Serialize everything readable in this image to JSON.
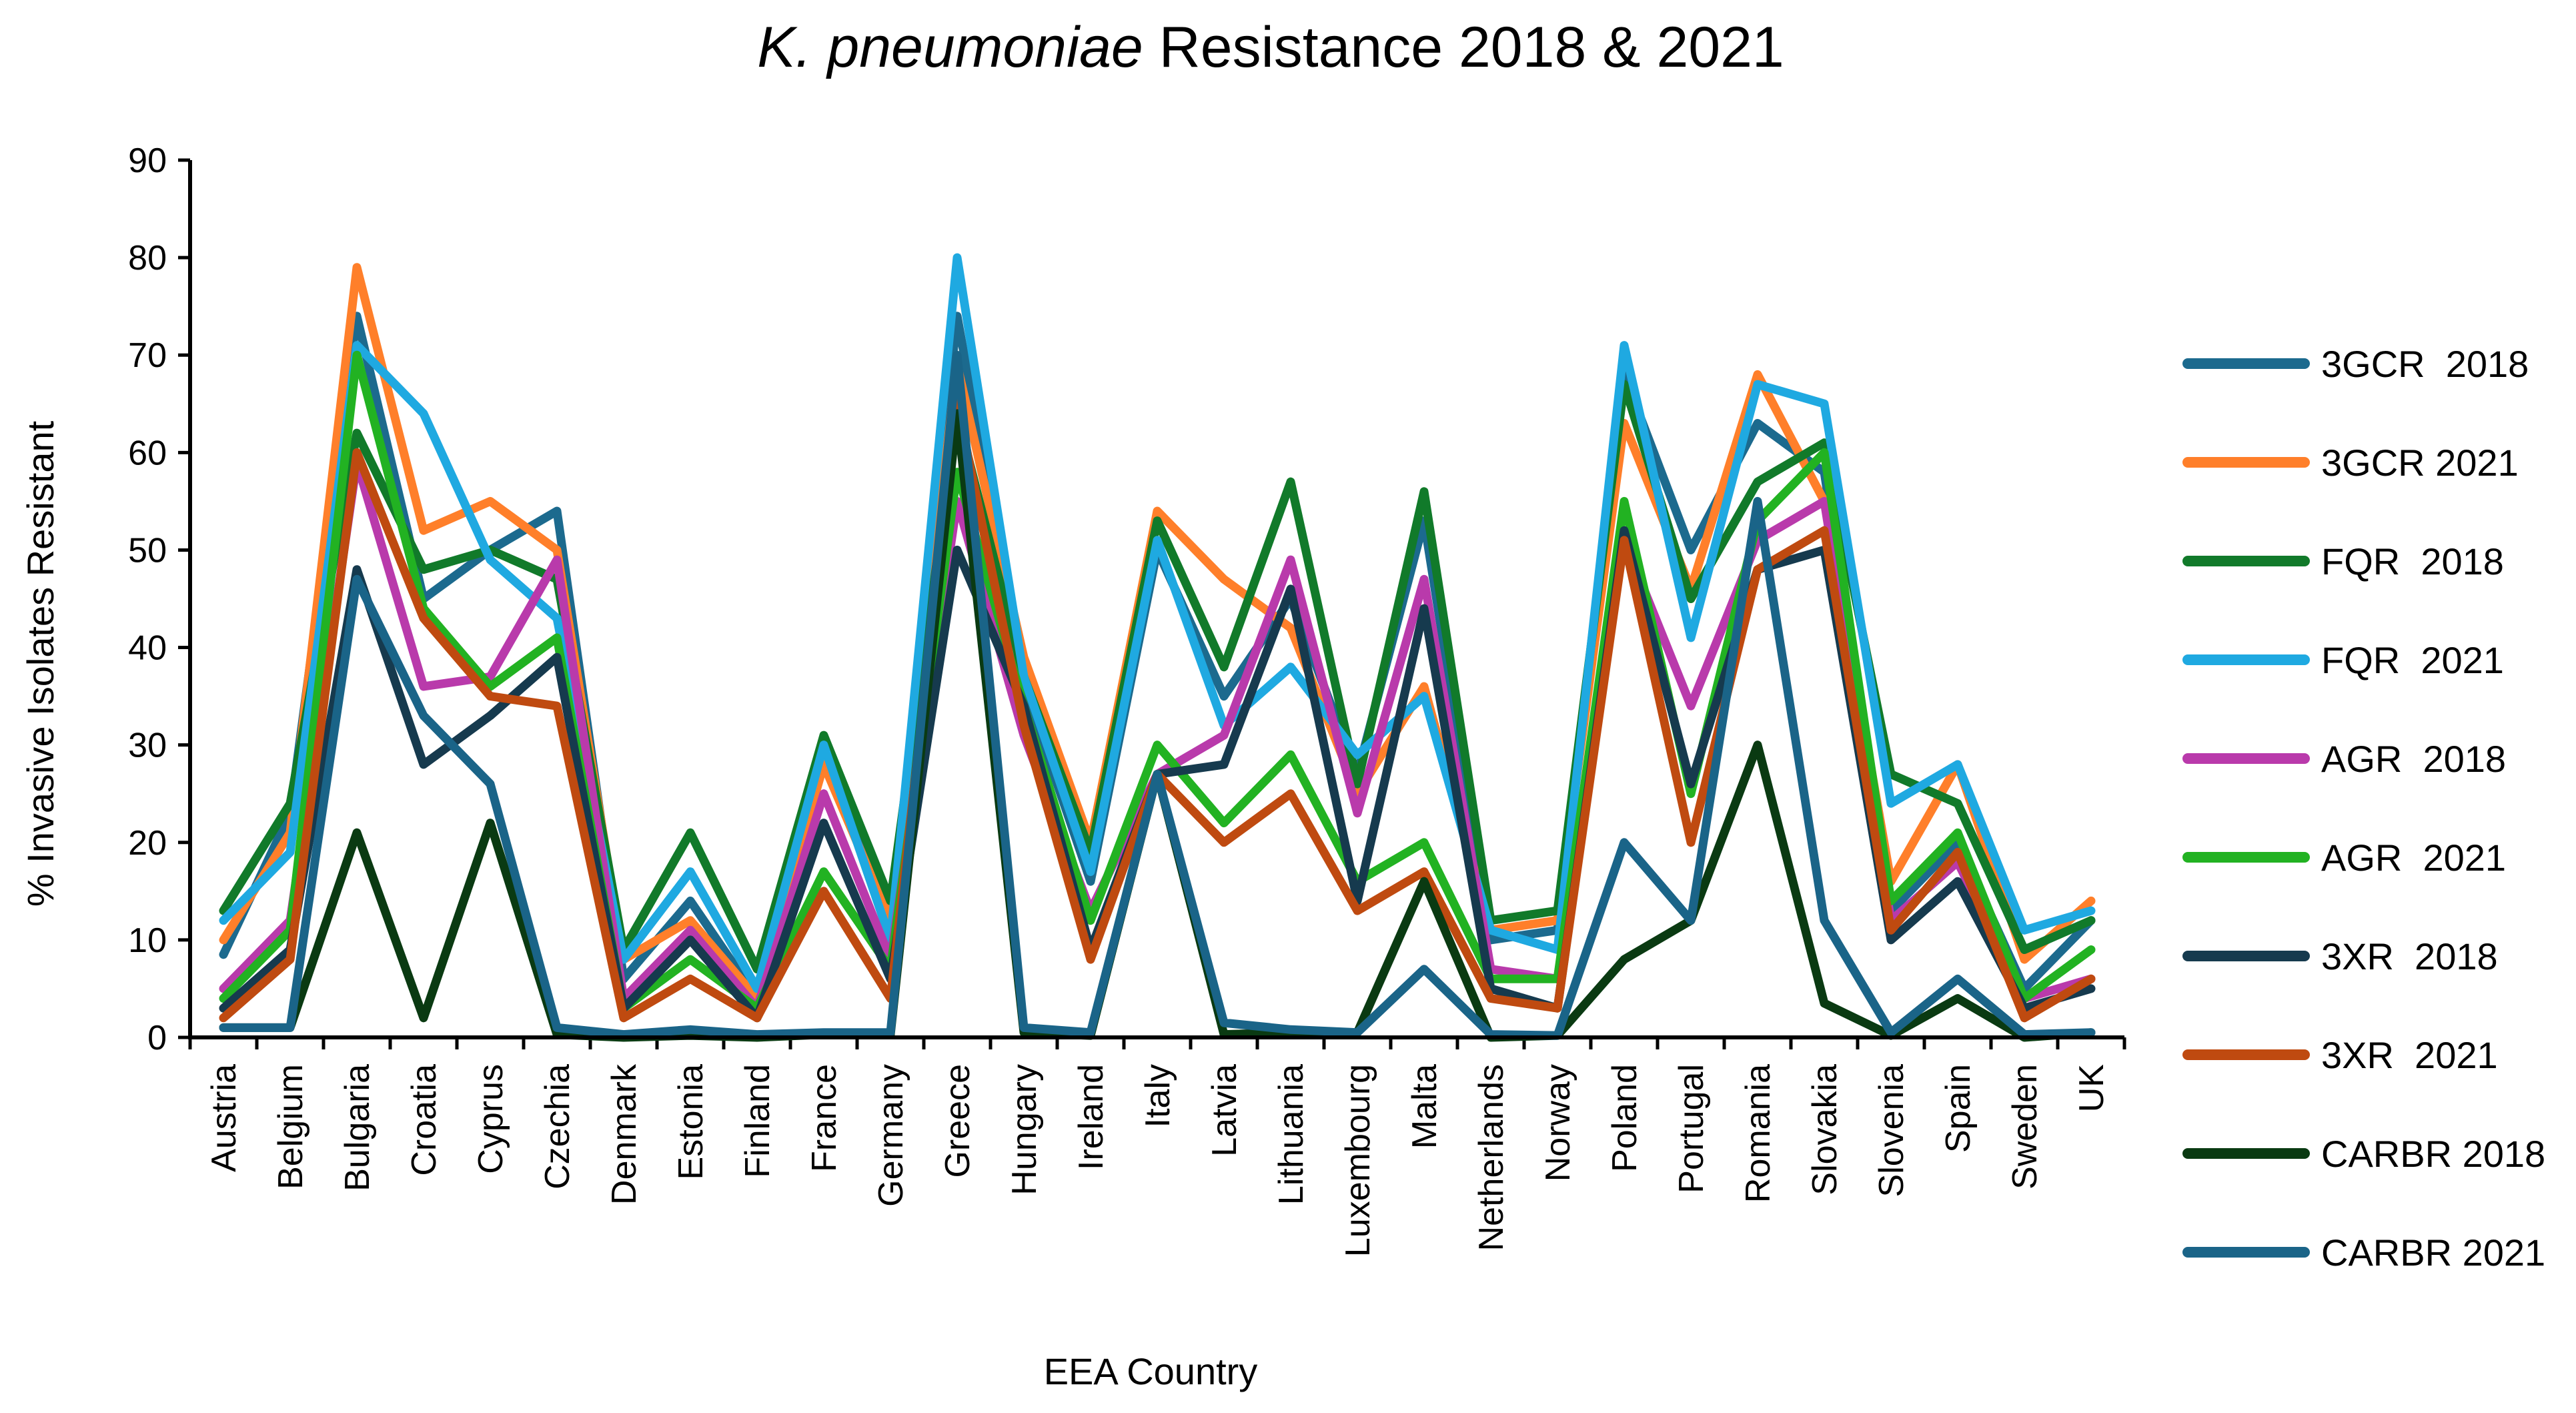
{
  "chart_data": {
    "type": "line",
    "title_italic": "K. pneumoniae",
    "title_rest": " Resistance 2018 & 2021",
    "xlabel": "EEA Country",
    "ylabel": "% Invasive Isolates Resistant",
    "ylim": [
      0,
      90
    ],
    "yticks": [
      0,
      10,
      20,
      30,
      40,
      50,
      60,
      70,
      80,
      90
    ],
    "grid": false,
    "legend_position": "right",
    "categories": [
      "Austria",
      "Belgium",
      "Bulgaria",
      "Croatia",
      "Cyprus",
      "Czechia",
      "Denmark",
      "Estonia",
      "Finland",
      "France",
      "Germany",
      "Greece",
      "Hungary",
      "Ireland",
      "Italy",
      "Latvia",
      "Lithuania",
      "Luxembourg",
      "Malta",
      "Netherlands",
      "Norway",
      "Poland",
      "Portugal",
      "Romania",
      "Slovakia",
      "Slovenia",
      "Spain",
      "Sweden",
      "UK"
    ],
    "series": [
      {
        "name": "3GCR  2018",
        "color": "#1c6a8e",
        "values": [
          8.5,
          23,
          74,
          45,
          50,
          54,
          6,
          14,
          4,
          30,
          11,
          74,
          36,
          16,
          50,
          35,
          45,
          27,
          53,
          10,
          11,
          68,
          50,
          63,
          58,
          13,
          20,
          5,
          12
        ]
      },
      {
        "name": "3GCR 2021",
        "color": "#ff7f2a",
        "values": [
          10,
          21,
          79,
          52,
          55,
          50,
          8,
          12,
          4,
          28,
          12,
          69,
          39,
          20,
          54,
          47,
          42,
          25,
          36,
          11,
          12,
          63,
          46,
          68,
          55,
          16,
          28,
          8,
          14
        ]
      },
      {
        "name": "FQR  2018",
        "color": "#117a2a",
        "values": [
          13,
          24,
          62,
          48,
          50,
          47,
          9,
          21,
          7,
          31,
          14,
          64,
          37,
          19,
          53,
          38,
          57,
          26,
          56,
          12,
          13,
          67,
          45,
          57,
          61,
          27,
          24,
          9,
          12
        ]
      },
      {
        "name": "FQR  2021",
        "color": "#1fa9e1",
        "values": [
          12,
          19,
          71,
          64,
          49,
          43,
          8,
          17,
          5,
          30,
          10,
          80,
          37,
          17,
          51,
          32,
          38,
          29,
          35,
          11,
          9,
          71,
          41,
          67,
          65,
          24,
          28,
          11,
          13
        ]
      },
      {
        "name": "AGR  2018",
        "color": "#b93aab",
        "values": [
          5,
          12,
          59,
          36,
          37,
          49,
          4,
          11,
          3,
          25,
          8,
          55,
          31,
          13,
          27,
          31,
          49,
          23,
          47,
          7,
          6,
          51,
          34,
          51,
          55,
          12,
          18,
          4,
          6
        ]
      },
      {
        "name": "AGR  2021",
        "color": "#22b222",
        "values": [
          4,
          11,
          70,
          44,
          36,
          41,
          3,
          8,
          3,
          17,
          7,
          58,
          34,
          12,
          30,
          22,
          29,
          16,
          20,
          6,
          6,
          55,
          25,
          53,
          60,
          14,
          21,
          4,
          9
        ]
      },
      {
        "name": "3XR  2018",
        "color": "#163a4e",
        "values": [
          3,
          9,
          48,
          28,
          33,
          39,
          3,
          10,
          2,
          22,
          6,
          50,
          34,
          9,
          27,
          28,
          46,
          14,
          44,
          5,
          3,
          52,
          26,
          48,
          50,
          10,
          16,
          3,
          5
        ]
      },
      {
        "name": "3XR  2021",
        "color": "#bf4a10",
        "values": [
          2,
          8,
          60,
          43,
          35,
          34,
          2,
          6,
          2,
          15,
          4,
          65,
          32,
          8,
          27,
          20,
          25,
          13,
          17,
          4,
          3,
          51,
          20,
          48,
          52,
          11,
          19,
          2,
          6
        ]
      },
      {
        "name": "CARBR 2018",
        "color": "#0a3a12",
        "values": [
          1,
          1,
          21,
          2,
          22,
          0.3,
          0,
          0.2,
          0,
          0.3,
          0.3,
          64,
          0.5,
          0.2,
          27,
          0.3,
          0.5,
          0.5,
          16,
          0,
          0.2,
          8,
          12,
          30,
          3.5,
          0.2,
          4,
          0,
          0.5
        ]
      },
      {
        "name": "CARBR 2021",
        "color": "#1a6488",
        "values": [
          1,
          1,
          47,
          33,
          26,
          1,
          0.3,
          0.8,
          0.3,
          0.5,
          0.5,
          70,
          1,
          0.5,
          27,
          1.5,
          0.8,
          0.5,
          7,
          0.3,
          0.2,
          20,
          12,
          55,
          12,
          0.5,
          6,
          0.3,
          0.5
        ]
      }
    ]
  }
}
